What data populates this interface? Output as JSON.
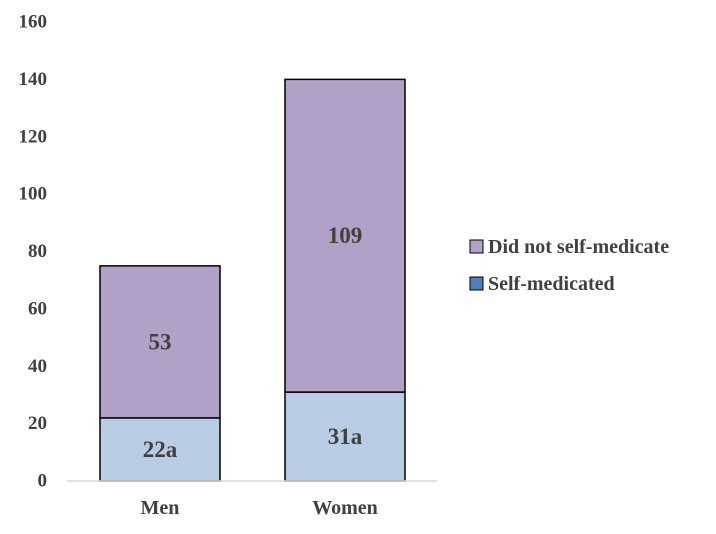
{
  "chart_data": {
    "type": "bar",
    "stacked": true,
    "categories": [
      "Men",
      "Women"
    ],
    "series": [
      {
        "name": "Self-medicated",
        "values": [
          22,
          31
        ],
        "labels": [
          "22a",
          "31a"
        ],
        "color": "#b8cce4",
        "legend_swatch_color": "#4f81bd"
      },
      {
        "name": "Did not self-medicate",
        "values": [
          53,
          109
        ],
        "labels": [
          "53",
          "109"
        ],
        "color": "#b2a1c7",
        "legend_swatch_color": "#b2a1c7"
      }
    ],
    "ylim": [
      0,
      160
    ],
    "yticks": [
      "0",
      "20",
      "40",
      "60",
      "80",
      "100",
      "120",
      "140",
      "160"
    ],
    "grid": false,
    "legend_position": "right",
    "bar_outline_color": "#000000",
    "axis_line_color": "#d9d9d9",
    "text_color": "#404040"
  }
}
